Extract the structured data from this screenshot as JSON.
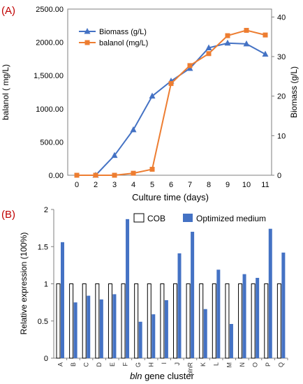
{
  "chart_data": [
    {
      "panel_label": "(A)",
      "type": "line",
      "x": [
        "0",
        "2",
        "3",
        "4",
        "5",
        "6",
        "7",
        "8",
        "9",
        "10",
        "11"
      ],
      "xlabel": "Culture time (days)",
      "ylabel_left": "balanol ( mg/L)",
      "ylabel_right": "Biomass (g/L)",
      "ylim_left": [
        0,
        2500
      ],
      "ylim_right": [
        0,
        42
      ],
      "yticks_left": [
        "0.00",
        "500.00",
        "1000.00",
        "1,500.00",
        "2000.00",
        "2500.00"
      ],
      "yticks_right": [
        "0",
        "10",
        "20",
        "30",
        "40"
      ],
      "legend": "top-left",
      "series": [
        {
          "name": "Biomass (g/L)",
          "axis": "right",
          "marker": "triangle",
          "color": "#4472C4",
          "values": [
            null,
            0,
            5,
            11.5,
            20,
            23.8,
            27,
            32.2,
            33.4,
            33.2,
            30.6
          ]
        },
        {
          "name": "balanol (mg/L)",
          "axis": "left",
          "marker": "square",
          "color": "#ED7D31",
          "values": [
            0,
            0,
            0,
            30,
            90,
            1380,
            1650,
            1830,
            2100,
            2180,
            2110
          ]
        }
      ]
    },
    {
      "panel_label": "(B)",
      "type": "bar",
      "categories": [
        "A",
        "B",
        "C",
        "D",
        "E",
        "F",
        "G",
        "H",
        "I",
        "J",
        "blnR",
        "K",
        "L",
        "M",
        "N",
        "O",
        "P",
        "Q"
      ],
      "xlabel_italic": "bln",
      "xlabel_rest": " gene cluster",
      "ylabel": "Relative expression (100%)",
      "ylim": [
        0,
        2
      ],
      "yticks": [
        "0",
        "0.5",
        "1",
        "1.5",
        "2"
      ],
      "legend": "top-right",
      "series": [
        {
          "name": "COB",
          "color": "#ffffff",
          "edge": "#000000",
          "values": [
            1,
            1,
            1,
            1,
            1,
            1,
            1,
            1,
            1,
            1,
            1,
            1,
            1,
            1,
            1,
            1,
            1,
            1
          ]
        },
        {
          "name": "Optimized medium",
          "color": "#4472C4",
          "values": [
            1.56,
            0.75,
            0.84,
            0.79,
            0.86,
            1.87,
            0.49,
            0.59,
            0.78,
            1.41,
            1.7,
            0.66,
            1.19,
            0.46,
            1.13,
            1.08,
            1.74,
            1.42
          ]
        }
      ]
    }
  ]
}
